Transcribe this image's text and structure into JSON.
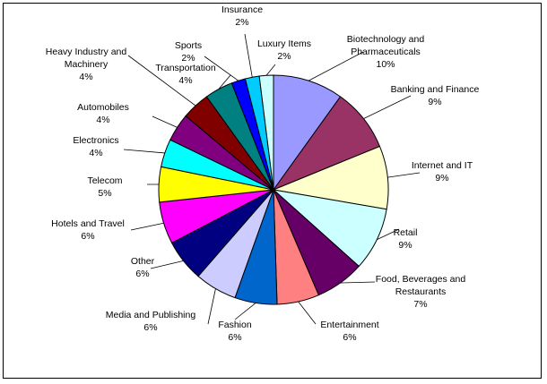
{
  "chart_data": {
    "type": "pie",
    "title": "",
    "start": "12 o'clock",
    "direction": "clockwise",
    "slices": [
      {
        "label": [
          "Biotechnology and",
          "Pharmaceuticals"
        ],
        "pct_label": "10%",
        "value": 10,
        "color": "#9999FF"
      },
      {
        "label": [
          "Banking and Finance"
        ],
        "pct_label": "9%",
        "value": 9,
        "color": "#993366"
      },
      {
        "label": [
          "Internet and IT"
        ],
        "pct_label": "9%",
        "value": 9,
        "color": "#FFFFCC"
      },
      {
        "label": [
          "Retail"
        ],
        "pct_label": "9%",
        "value": 9,
        "color": "#CCFFFF"
      },
      {
        "label": [
          "Food, Beverages and",
          "Restaurants"
        ],
        "pct_label": "7%",
        "value": 7,
        "color": "#660066"
      },
      {
        "label": [
          "Entertainment"
        ],
        "pct_label": "6%",
        "value": 6,
        "color": "#FF8080"
      },
      {
        "label": [
          "Fashion"
        ],
        "pct_label": "6%",
        "value": 6,
        "color": "#0066CC"
      },
      {
        "label": [
          "Media and Publishing"
        ],
        "pct_label": "6%",
        "value": 6,
        "color": "#CCCCFF"
      },
      {
        "label": [
          "Other"
        ],
        "pct_label": "6%",
        "value": 6,
        "color": "#000080"
      },
      {
        "label": [
          "Hotels and Travel"
        ],
        "pct_label": "6%",
        "value": 6,
        "color": "#FF00FF"
      },
      {
        "label": [
          "Telecom"
        ],
        "pct_label": "5%",
        "value": 5,
        "color": "#FFFF00"
      },
      {
        "label": [
          "Electronics"
        ],
        "pct_label": "4%",
        "value": 4,
        "color": "#00FFFF"
      },
      {
        "label": [
          "Automobiles"
        ],
        "pct_label": "4%",
        "value": 4,
        "color": "#800080"
      },
      {
        "label": [
          "Heavy Industry and",
          "Machinery"
        ],
        "pct_label": "4%",
        "value": 4,
        "color": "#800000"
      },
      {
        "label": [
          "Transportation"
        ],
        "pct_label": "4%",
        "value": 4,
        "color": "#008080"
      },
      {
        "label": [
          "Sports"
        ],
        "pct_label": "2%",
        "value": 2,
        "color": "#0000FF"
      },
      {
        "label": [
          "Insurance"
        ],
        "pct_label": "2%",
        "value": 2,
        "color": "#00CCFF"
      },
      {
        "label": [
          "Luxury Items"
        ],
        "pct_label": "2%",
        "value": 2,
        "color": "#CCFFFF"
      }
    ]
  }
}
